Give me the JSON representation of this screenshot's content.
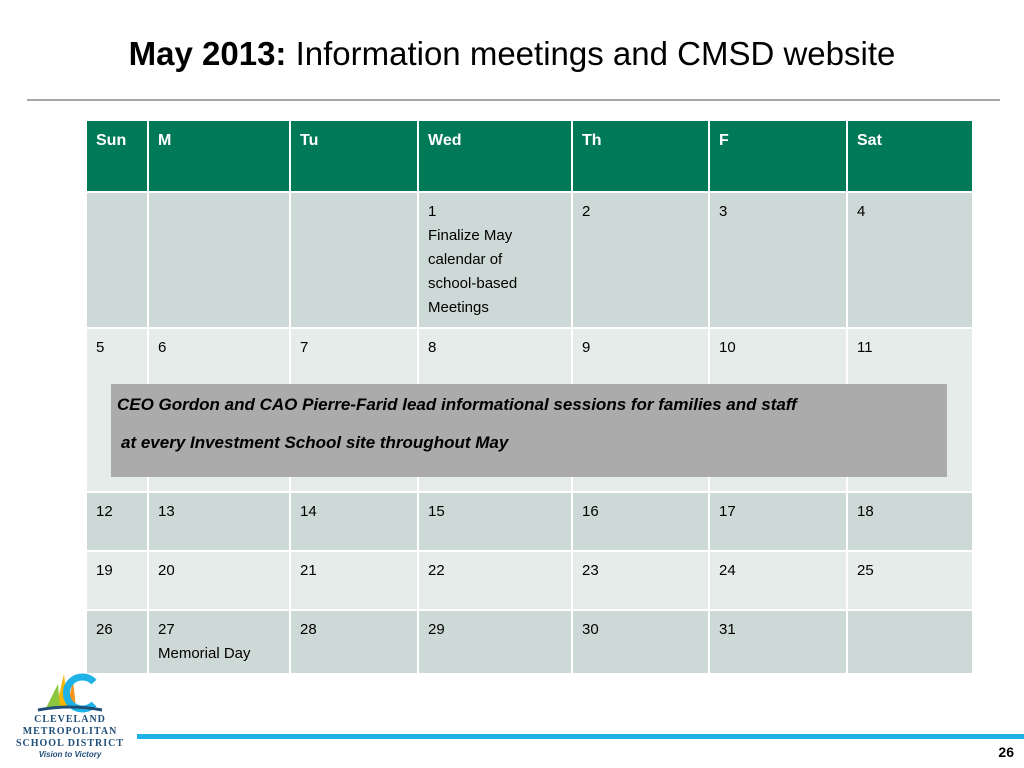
{
  "slide": {
    "title_bold": "May 2013:",
    "title_rest": " Information meetings and CMSD website",
    "page_number": "26"
  },
  "calendar": {
    "headers": [
      "Sun",
      "M",
      "Tu",
      "Wed",
      "Th",
      "F",
      "Sat"
    ],
    "rows": [
      [
        "",
        "",
        "",
        "1|Finalize May|calendar of|school-based|Meetings",
        "2",
        "3",
        "4"
      ],
      [
        "5",
        "6",
        "7",
        "8",
        "9",
        "10",
        "11"
      ],
      [
        "12",
        "13",
        "14",
        "15",
        "16",
        "17",
        "18"
      ],
      [
        "19",
        "20",
        "21",
        "22",
        "23",
        "24",
        "25"
      ],
      [
        "26",
        "27|Memorial Day",
        "28",
        "29",
        "30",
        "31",
        ""
      ]
    ]
  },
  "callout": {
    "line1": "CEO Gordon and CAO Pierre-Farid lead informational sessions for families and staff",
    "line2": "at every Investment School site throughout May"
  },
  "logo": {
    "line1": "CLEVELAND",
    "line2": "METROPOLITAN",
    "line3": "SCHOOL DISTRICT",
    "tagline": "Vision to Victory"
  },
  "colors": {
    "header_green": "#007a56",
    "row_dark": "#cdd9d6",
    "row_light": "#e6ecea",
    "callout_gray": "#ababab",
    "footer_blue": "#1fb2e6"
  }
}
